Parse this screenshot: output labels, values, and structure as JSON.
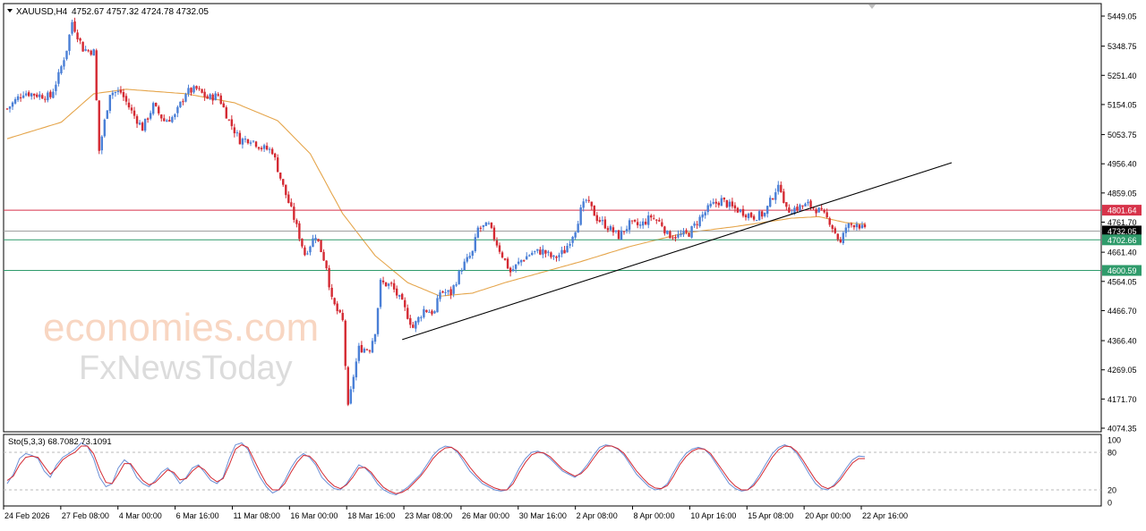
{
  "window": {
    "symbol_label": "XAUUSD,H4",
    "ohlc_label": "4752.67 4757.32 4724.78 4732.05",
    "indicator_label": "Sto(5,3,3) 68.7082 73.1091"
  },
  "watermark": {
    "brand_line1": "economies.com",
    "brand_line2": "FxNewsToday"
  },
  "colors": {
    "bull": "#4a7fd6",
    "bear": "#d42a33",
    "ma": "#e5a54b",
    "resistance": "#d7334a",
    "support": "#2f9b6b",
    "current": "#a0a0a0",
    "trendline": "#000000",
    "stoch_main": "#6b8fd6",
    "stoch_signal": "#d42a33"
  },
  "chart_data": [
    {
      "type": "candlestick",
      "title": "XAUUSD,H4",
      "yaxis": {
        "ticks": [
          "5449.05",
          "5348.75",
          "5251.40",
          "5154.05",
          "5053.75",
          "4956.40",
          "4859.05",
          "4761.70",
          "4661.40",
          "4564.05",
          "4466.70",
          "4366.40",
          "4269.05",
          "4171.70",
          "4074.35"
        ],
        "ylim": [
          4074.35,
          5449.05
        ]
      },
      "xaxis": {
        "ticks": [
          "24 Feb 2026",
          "27 Feb 08:00",
          "4 Mar 00:00",
          "6 Mar 16:00",
          "11 Mar 08:00",
          "16 Mar 00:00",
          "18 Mar 16:00",
          "23 Mar 08:00",
          "26 Mar 00:00",
          "30 Mar 16:00",
          "2 Apr 08:00",
          "8 Apr 00:00",
          "10 Apr 16:00",
          "15 Apr 08:00",
          "20 Apr 00:00",
          "22 Apr 16:00"
        ]
      },
      "price_path": [
        [
          0,
          5140
        ],
        [
          6,
          5195
        ],
        [
          12,
          5185
        ],
        [
          16,
          5180
        ],
        [
          19,
          5250
        ],
        [
          22,
          5340
        ],
        [
          24,
          5430
        ],
        [
          28,
          5340
        ],
        [
          32,
          5330
        ],
        [
          34,
          5000
        ],
        [
          38,
          5195
        ],
        [
          42,
          5195
        ],
        [
          46,
          5130
        ],
        [
          50,
          5075
        ],
        [
          54,
          5150
        ],
        [
          58,
          5100
        ],
        [
          62,
          5115
        ],
        [
          66,
          5195
        ],
        [
          70,
          5205
        ],
        [
          74,
          5175
        ],
        [
          78,
          5185
        ],
        [
          82,
          5100
        ],
        [
          86,
          5035
        ],
        [
          90,
          5040
        ],
        [
          94,
          5010
        ],
        [
          98,
          5000
        ],
        [
          102,
          4880
        ],
        [
          106,
          4775
        ],
        [
          110,
          4655
        ],
        [
          114,
          4720
        ],
        [
          118,
          4615
        ],
        [
          120,
          4500
        ],
        [
          124,
          4430
        ],
        [
          126,
          4140
        ],
        [
          128,
          4250
        ],
        [
          130,
          4340
        ],
        [
          134,
          4340
        ],
        [
          136,
          4400
        ],
        [
          138,
          4560
        ],
        [
          142,
          4550
        ],
        [
          146,
          4490
        ],
        [
          150,
          4410
        ],
        [
          154,
          4470
        ],
        [
          158,
          4460
        ],
        [
          160,
          4530
        ],
        [
          164,
          4525
        ],
        [
          168,
          4610
        ],
        [
          172,
          4660
        ],
        [
          174,
          4740
        ],
        [
          178,
          4750
        ],
        [
          182,
          4670
        ],
        [
          186,
          4595
        ],
        [
          190,
          4635
        ],
        [
          194,
          4660
        ],
        [
          198,
          4665
        ],
        [
          202,
          4640
        ],
        [
          206,
          4665
        ],
        [
          210,
          4740
        ],
        [
          212,
          4800
        ],
        [
          214,
          4835
        ],
        [
          218,
          4775
        ],
        [
          222,
          4745
        ],
        [
          226,
          4715
        ],
        [
          230,
          4755
        ],
        [
          234,
          4750
        ],
        [
          238,
          4780
        ],
        [
          242,
          4755
        ],
        [
          244,
          4720
        ],
        [
          248,
          4715
        ],
        [
          252,
          4725
        ],
        [
          256,
          4775
        ],
        [
          260,
          4815
        ],
        [
          264,
          4835
        ],
        [
          268,
          4810
        ],
        [
          272,
          4795
        ],
        [
          276,
          4780
        ],
        [
          280,
          4790
        ],
        [
          284,
          4870
        ],
        [
          286,
          4875
        ],
        [
          288,
          4800
        ],
        [
          292,
          4810
        ],
        [
          296,
          4820
        ],
        [
          300,
          4800
        ],
        [
          304,
          4765
        ],
        [
          308,
          4690
        ],
        [
          310,
          4745
        ],
        [
          314,
          4760
        ],
        [
          317,
          4732
        ]
      ],
      "candle_count": 318,
      "moving_average": [
        [
          0,
          5040
        ],
        [
          20,
          5095
        ],
        [
          32,
          5190
        ],
        [
          44,
          5205
        ],
        [
          66,
          5190
        ],
        [
          84,
          5160
        ],
        [
          100,
          5100
        ],
        [
          112,
          4990
        ],
        [
          124,
          4790
        ],
        [
          136,
          4650
        ],
        [
          148,
          4560
        ],
        [
          160,
          4515
        ],
        [
          172,
          4525
        ],
        [
          184,
          4560
        ],
        [
          200,
          4600
        ],
        [
          212,
          4630
        ],
        [
          230,
          4680
        ],
        [
          250,
          4725
        ],
        [
          270,
          4748
        ],
        [
          290,
          4775
        ],
        [
          300,
          4780
        ],
        [
          310,
          4760
        ],
        [
          317,
          4755
        ]
      ],
      "horizontal_levels": [
        {
          "value": 4801.64,
          "label": "4801.64",
          "role": "resistance"
        },
        {
          "value": 4732.05,
          "label": "4732.05",
          "role": "current"
        },
        {
          "value": 4702.66,
          "label": "4702.66",
          "role": "support"
        },
        {
          "value": 4600.59,
          "label": "4600.59",
          "role": "support"
        }
      ],
      "trendline": {
        "from": [
          146,
          4370
        ],
        "to": [
          316,
          4960
        ]
      }
    },
    {
      "type": "line",
      "title": "Sto(5,3,3) 68.7082 73.1091",
      "yaxis": {
        "ticks": [
          "100",
          "80",
          "20",
          "0"
        ],
        "ylim": [
          0,
          100
        ],
        "levels": [
          80,
          20
        ]
      },
      "series": [
        {
          "values": [
            30,
            45,
            70,
            78,
            75,
            70,
            50,
            40,
            60,
            72,
            78,
            85,
            95,
            90,
            70,
            40,
            25,
            30,
            55,
            68,
            60,
            40,
            30,
            25,
            35,
            48,
            55,
            45,
            30,
            40,
            55,
            60,
            48,
            35,
            30,
            40,
            70,
            92,
            95,
            85,
            60,
            40,
            25,
            15,
            20,
            35,
            55,
            70,
            78,
            72,
            60,
            40,
            30,
            22,
            20,
            30,
            45,
            60,
            55,
            45,
            30,
            20,
            15,
            12,
            18,
            25,
            35,
            45,
            60,
            75,
            85,
            90,
            88,
            80,
            65,
            50,
            40,
            30,
            25,
            20,
            18,
            20,
            35,
            55,
            70,
            80,
            82,
            78,
            70,
            60,
            50,
            45,
            40,
            48,
            60,
            75,
            88,
            92,
            90,
            85,
            75,
            60,
            45,
            35,
            25,
            20,
            22,
            30,
            48,
            65,
            78,
            85,
            88,
            85,
            75,
            60,
            45,
            30,
            22,
            18,
            20,
            30,
            45,
            62,
            78,
            88,
            92,
            88,
            78,
            62,
            45,
            30,
            22,
            20,
            28,
            40,
            55,
            68,
            74,
            73
          ]
        },
        {
          "values": [
            35,
            42,
            60,
            72,
            74,
            72,
            58,
            45,
            55,
            68,
            75,
            80,
            90,
            90,
            78,
            52,
            32,
            30,
            45,
            62,
            62,
            48,
            35,
            28,
            32,
            42,
            52,
            48,
            36,
            38,
            50,
            58,
            52,
            40,
            33,
            38,
            60,
            85,
            92,
            88,
            68,
            48,
            30,
            20,
            20,
            30,
            48,
            64,
            75,
            74,
            64,
            48,
            35,
            26,
            22,
            28,
            40,
            55,
            56,
            48,
            35,
            24,
            18,
            14,
            16,
            22,
            32,
            42,
            55,
            70,
            80,
            87,
            88,
            82,
            70,
            56,
            44,
            34,
            28,
            23,
            20,
            20,
            30,
            48,
            64,
            76,
            80,
            79,
            73,
            63,
            53,
            47,
            42,
            46,
            56,
            70,
            83,
            90,
            90,
            86,
            78,
            64,
            50,
            39,
            29,
            23,
            22,
            27,
            42,
            60,
            73,
            82,
            86,
            85,
            78,
            64,
            50,
            36,
            26,
            20,
            20,
            27,
            40,
            56,
            72,
            84,
            90,
            89,
            81,
            67,
            51,
            36,
            26,
            22,
            26,
            36,
            50,
            63,
            70,
            70
          ]
        }
      ]
    }
  ]
}
